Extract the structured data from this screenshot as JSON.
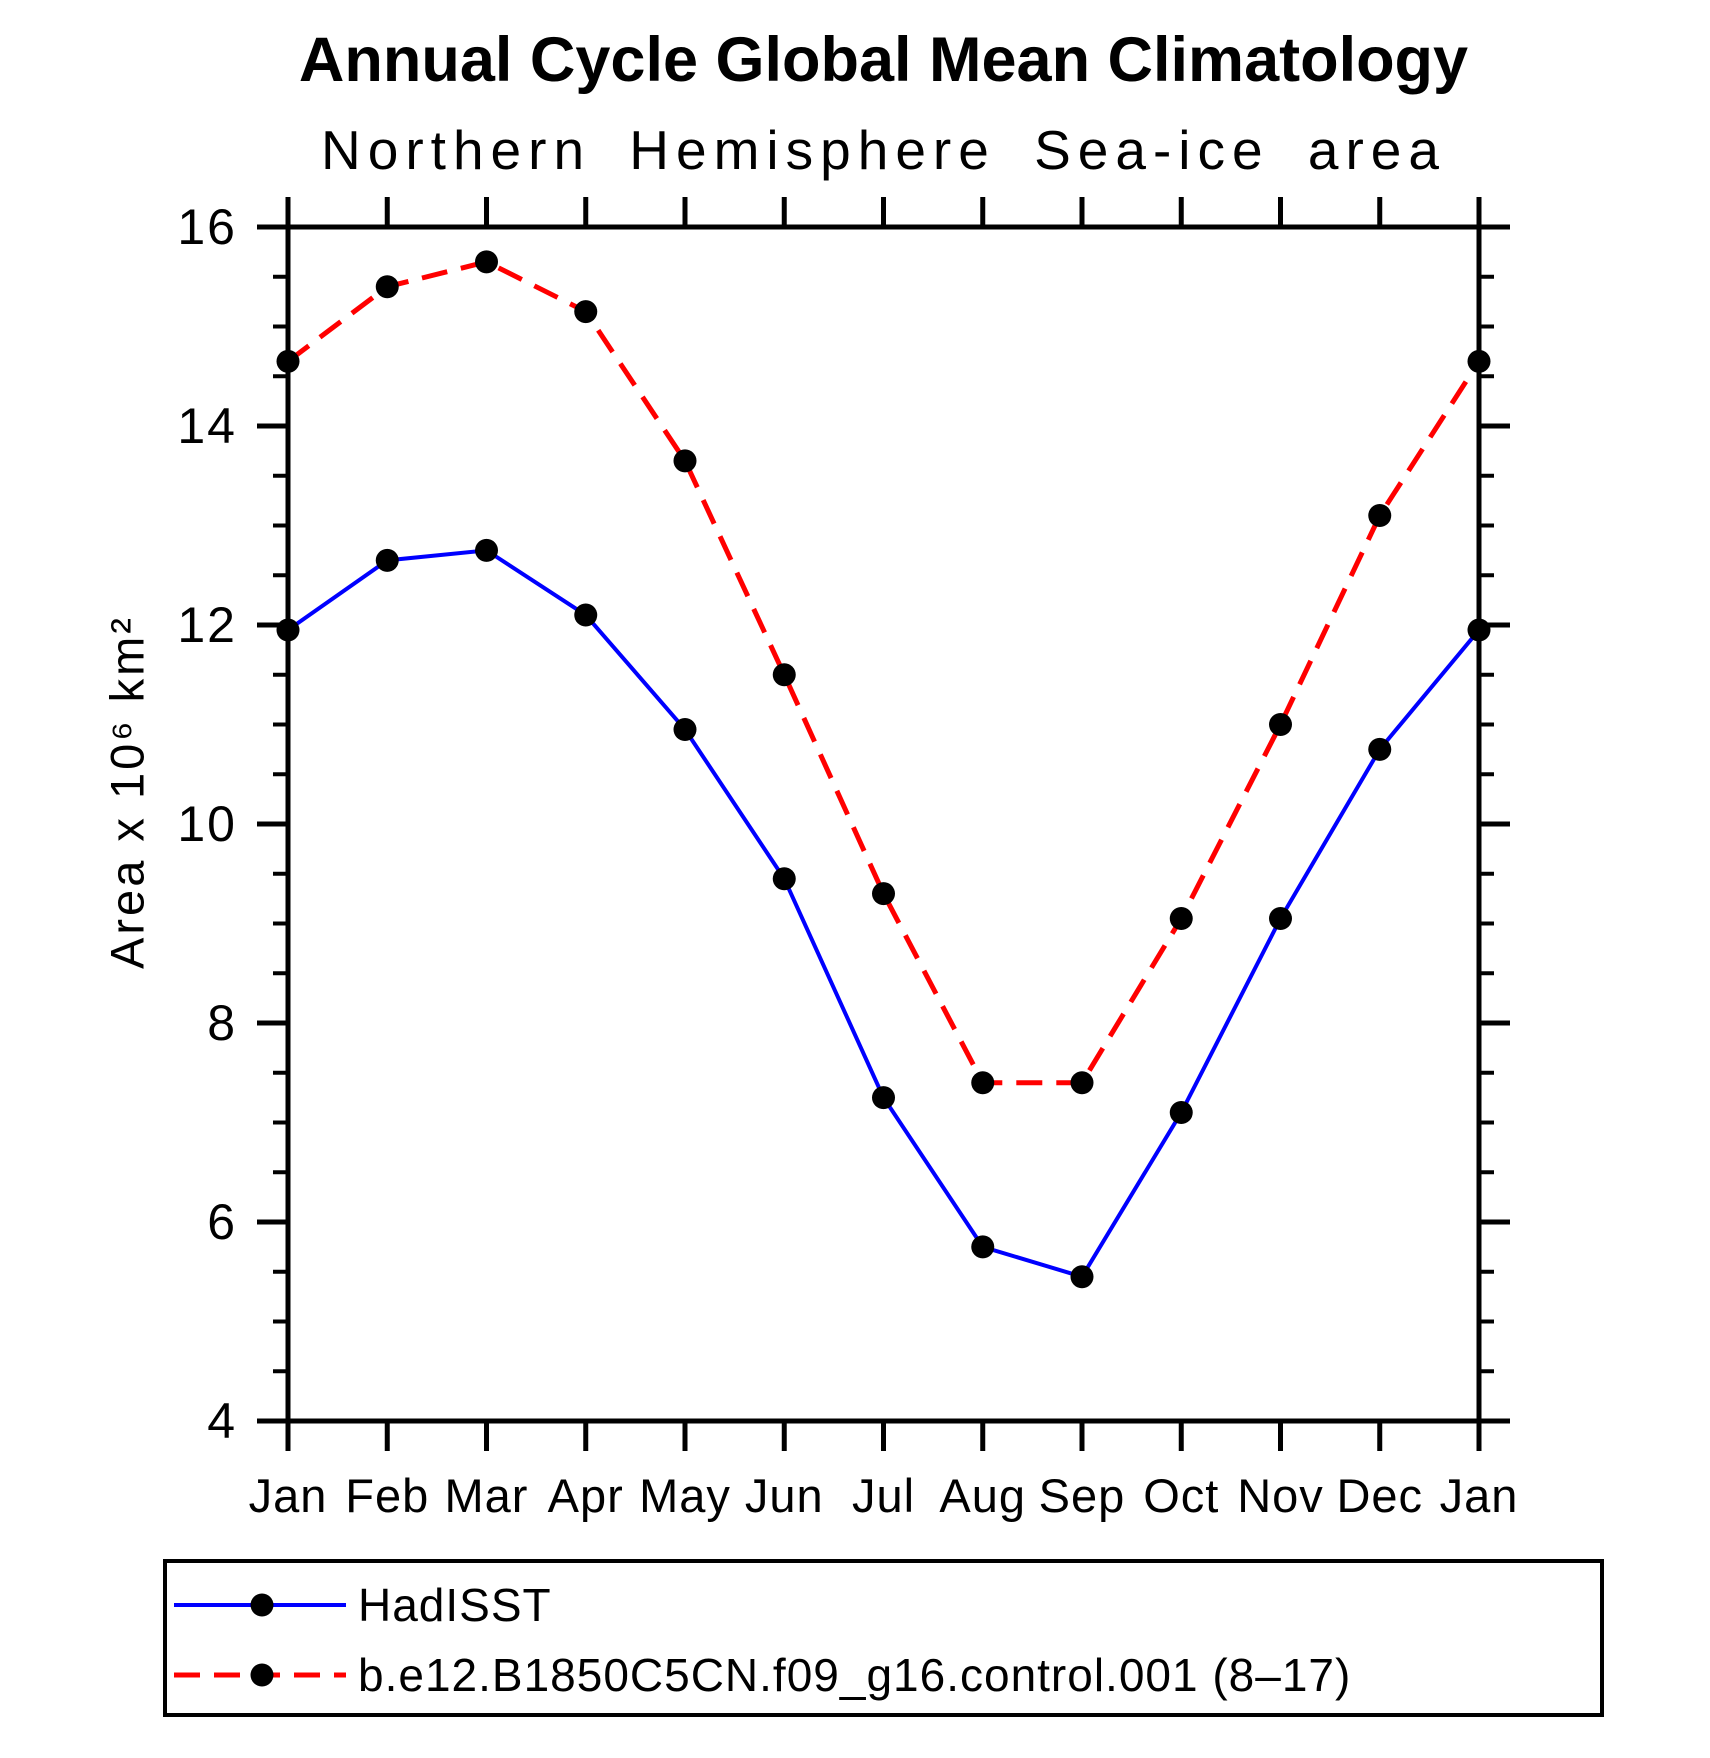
{
  "chart_data": {
    "type": "line",
    "title": "Annual Cycle Global Mean Climatology",
    "subtitle": "Northern Hemisphere Sea-ice area",
    "xlabel": "",
    "ylabel": "Area x 10⁶ km²",
    "categories": [
      "Jan",
      "Feb",
      "Mar",
      "Apr",
      "May",
      "Jun",
      "Jul",
      "Aug",
      "Sep",
      "Oct",
      "Nov",
      "Dec",
      "Jan"
    ],
    "ylim": [
      4,
      16
    ],
    "ytick_step": 2,
    "yminor_step": 0.5,
    "ytick_labels": [
      "4",
      "6",
      "8",
      "10",
      "12",
      "14",
      "16"
    ],
    "grid": false,
    "legend_position": "bottom",
    "axis_color": "#000000",
    "marker_color": "#000000",
    "series": [
      {
        "name": "HadISST",
        "color": "#0000ff",
        "style": "solid",
        "marker": "circle",
        "values": [
          11.95,
          12.65,
          12.75,
          12.1,
          10.95,
          9.45,
          7.25,
          5.75,
          5.45,
          7.1,
          9.05,
          10.75,
          11.95
        ]
      },
      {
        "name": "b.e12.B1850C5CN.f09_g16.control.001 (8–17)",
        "color": "#ff0000",
        "style": "dashed",
        "marker": "circle",
        "values": [
          14.65,
          15.4,
          15.65,
          15.15,
          13.65,
          11.5,
          9.3,
          7.4,
          7.4,
          9.05,
          11.0,
          13.1,
          14.65
        ]
      }
    ]
  }
}
